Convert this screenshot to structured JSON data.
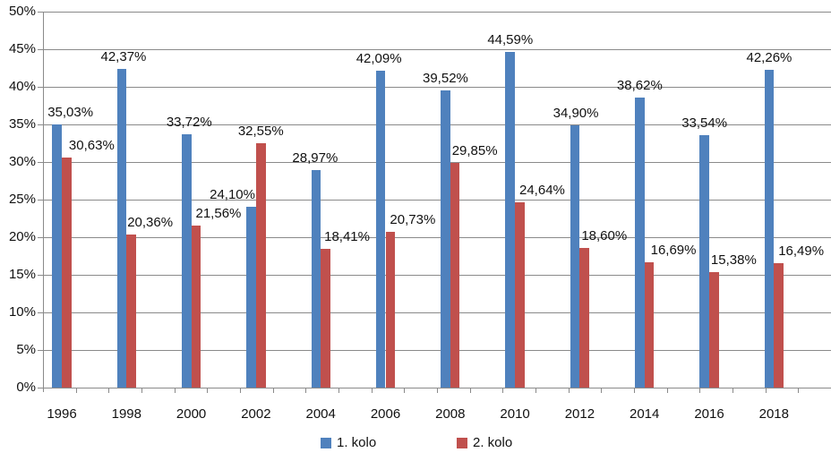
{
  "chart_data": {
    "type": "bar",
    "title": "",
    "categories": [
      "1996",
      "1998",
      "2000",
      "2002",
      "2004",
      "2006",
      "2008",
      "2010",
      "2012",
      "2014",
      "2016",
      "2018"
    ],
    "series": [
      {
        "name": "1. kolo",
        "color": "#4F81BD",
        "values": [
          35.03,
          42.37,
          33.72,
          24.1,
          28.97,
          42.09,
          39.52,
          44.59,
          34.9,
          38.62,
          33.54,
          42.26
        ],
        "labels": [
          "35,03%",
          "42,37%",
          "33,72%",
          "24,10%",
          "28,97%",
          "42,09%",
          "39,52%",
          "44,59%",
          "34,90%",
          "38,62%",
          "33,54%",
          "42,26%"
        ],
        "label_dx": [
          15,
          2,
          3,
          -21,
          -1,
          -2,
          0,
          0,
          1,
          0,
          0,
          0
        ]
      },
      {
        "name": "2. kolo",
        "color": "#C0504D",
        "values": [
          30.63,
          20.36,
          21.56,
          32.55,
          18.41,
          20.73,
          29.85,
          24.64,
          18.6,
          16.69,
          15.38,
          16.49
        ],
        "labels": [
          "30,63%",
          "20,36%",
          "21,56%",
          "32,55%",
          "18,41%",
          "20,73%",
          "29,85%",
          "24,64%",
          "18,60%",
          "16,69%",
          "15,38%",
          "16,49%"
        ],
        "label_dx": [
          28,
          21,
          25,
          0,
          24,
          25,
          22,
          25,
          22,
          27,
          22,
          25
        ]
      }
    ],
    "y_axis": {
      "ticks": [
        "0%",
        "5%",
        "10%",
        "15%",
        "20%",
        "25%",
        "30%",
        "35%",
        "40%",
        "45%",
        "50%"
      ],
      "min": 0,
      "max": 50,
      "grid": true
    },
    "x_axis": {
      "label": ""
    },
    "legend": {
      "position": "bottom"
    },
    "colors": {
      "gridline": "#8a8a8a",
      "axis": "#8a8a8a",
      "text": "#111111",
      "background": "#ffffff"
    }
  }
}
